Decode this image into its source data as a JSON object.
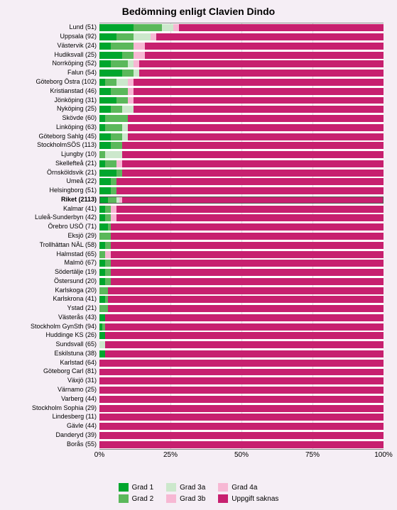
{
  "title": "Bedömning enligt Clavien Dindo",
  "title_fontsize": 14,
  "background": "#f5eef5",
  "plot_bg": "#ffffff",
  "grid_color": "#e0d8e0",
  "xlim": [
    0,
    100
  ],
  "xticks": [
    0,
    25,
    50,
    75,
    100
  ],
  "xtick_labels": [
    "0%",
    "25%",
    "50%",
    "75%",
    "100%"
  ],
  "xtick_fontsize": 10,
  "label_fontsize": 9,
  "legend": {
    "items": [
      {
        "label": "Grad 1",
        "color": "#00a62d"
      },
      {
        "label": "Grad 2",
        "color": "#5bb85b"
      },
      {
        "label": "Grad 3a",
        "color": "#cce8cc"
      },
      {
        "label": "Grad 3b",
        "color": "#f7b8d4"
      },
      {
        "label": "Grad 4a",
        "color": "#f7b8d4"
      },
      {
        "label": "Uppgift saknas",
        "color": "#c7206f"
      }
    ],
    "layout": [
      [
        0,
        1
      ],
      [
        2,
        3
      ],
      [
        4,
        5
      ]
    ],
    "fontsize": 10
  },
  "series_colors": [
    "#00a62d",
    "#5bb85b",
    "#cce8cc",
    "#f7b8d4",
    "#f7b8d4",
    "#c7206f"
  ],
  "rows": [
    {
      "label": "Lund",
      "n": 51,
      "v": [
        12,
        10,
        4,
        2,
        0,
        72
      ]
    },
    {
      "label": "Uppsala",
      "n": 92,
      "v": [
        6,
        6,
        6,
        2,
        0,
        80
      ]
    },
    {
      "label": "Västervik",
      "n": 24,
      "v": [
        4,
        8,
        0,
        4,
        0,
        84
      ]
    },
    {
      "label": "Hudiksvall",
      "n": 25,
      "v": [
        8,
        4,
        0,
        4,
        0,
        84
      ]
    },
    {
      "label": "Norrköping",
      "n": 52,
      "v": [
        4,
        6,
        2,
        2,
        0,
        86
      ]
    },
    {
      "label": "Falun",
      "n": 54,
      "v": [
        8,
        4,
        2,
        0,
        0,
        86
      ]
    },
    {
      "label": "Göteborg Östra",
      "n": 102,
      "v": [
        2,
        4,
        4,
        2,
        0,
        88
      ]
    },
    {
      "label": "Kristianstad",
      "n": 46,
      "v": [
        4,
        6,
        0,
        2,
        0,
        88
      ]
    },
    {
      "label": "Jönköping",
      "n": 31,
      "v": [
        6,
        4,
        0,
        2,
        0,
        88
      ]
    },
    {
      "label": "Nyköping",
      "n": 25,
      "v": [
        4,
        4,
        4,
        0,
        0,
        88
      ]
    },
    {
      "label": "Skövde",
      "n": 60,
      "v": [
        2,
        8,
        0,
        0,
        0,
        90
      ]
    },
    {
      "label": "Linköping",
      "n": 63,
      "v": [
        2,
        6,
        2,
        0,
        0,
        90
      ]
    },
    {
      "label": "Göteborg Sahlg",
      "n": 45,
      "v": [
        4,
        4,
        2,
        0,
        0,
        90
      ]
    },
    {
      "label": "StockholmSÖS",
      "n": 113,
      "v": [
        4,
        4,
        0,
        0,
        0,
        92
      ]
    },
    {
      "label": "Ljungby",
      "n": 10,
      "v": [
        0,
        2,
        6,
        0,
        0,
        92
      ]
    },
    {
      "label": "Skellefteå",
      "n": 21,
      "v": [
        2,
        4,
        0,
        2,
        0,
        92
      ]
    },
    {
      "label": "Örnsköldsvik",
      "n": 21,
      "v": [
        6,
        2,
        0,
        0,
        0,
        92
      ]
    },
    {
      "label": "Umeå",
      "n": 22,
      "v": [
        4,
        2,
        0,
        0,
        0,
        94
      ]
    },
    {
      "label": "Helsingborg",
      "n": 51,
      "v": [
        4,
        2,
        0,
        0,
        0,
        94
      ]
    },
    {
      "label": "Riket",
      "n": 2113,
      "v": [
        3,
        3,
        1,
        1,
        0,
        92
      ],
      "highlight": true
    },
    {
      "label": "Kalmar",
      "n": 41,
      "v": [
        2,
        2,
        0,
        2,
        0,
        94
      ]
    },
    {
      "label": "Luleå-Sunderbyn",
      "n": 42,
      "v": [
        2,
        2,
        0,
        2,
        0,
        94
      ]
    },
    {
      "label": "Örebro USÖ",
      "n": 71,
      "v": [
        3,
        1,
        0,
        0,
        0,
        96
      ]
    },
    {
      "label": "Eksjö",
      "n": 29,
      "v": [
        0,
        4,
        0,
        0,
        0,
        96
      ]
    },
    {
      "label": "Trollhättan NÄL",
      "n": 58,
      "v": [
        2,
        2,
        0,
        0,
        0,
        96
      ]
    },
    {
      "label": "Halmstad",
      "n": 65,
      "v": [
        0,
        2,
        0,
        2,
        0,
        96
      ]
    },
    {
      "label": "Malmö",
      "n": 67,
      "v": [
        2,
        2,
        0,
        0,
        0,
        96
      ]
    },
    {
      "label": "Södertälje",
      "n": 19,
      "v": [
        2,
        2,
        0,
        0,
        0,
        96
      ]
    },
    {
      "label": "Östersund",
      "n": 20,
      "v": [
        2,
        2,
        0,
        0,
        0,
        96
      ]
    },
    {
      "label": "Karlskoga",
      "n": 20,
      "v": [
        0,
        3,
        0,
        0,
        0,
        97
      ]
    },
    {
      "label": "Karlskrona",
      "n": 41,
      "v": [
        2,
        1,
        0,
        0,
        0,
        97
      ]
    },
    {
      "label": "Ystad",
      "n": 21,
      "v": [
        0,
        3,
        0,
        0,
        0,
        97
      ]
    },
    {
      "label": "Västerås",
      "n": 43,
      "v": [
        2,
        0,
        0,
        0,
        0,
        98
      ]
    },
    {
      "label": "Stockholm GynSth",
      "n": 94,
      "v": [
        1,
        1,
        0,
        0,
        0,
        98
      ]
    },
    {
      "label": "Huddinge KS",
      "n": 26,
      "v": [
        2,
        0,
        0,
        0,
        0,
        98
      ]
    },
    {
      "label": "Sundsvall",
      "n": 65,
      "v": [
        0,
        0,
        2,
        0,
        0,
        98
      ]
    },
    {
      "label": "Eskilstuna",
      "n": 38,
      "v": [
        2,
        0,
        0,
        0,
        0,
        98
      ]
    },
    {
      "label": "Karlstad",
      "n": 64,
      "v": [
        0,
        0,
        0,
        0,
        0,
        100
      ]
    },
    {
      "label": "Göteborg Carl",
      "n": 81,
      "v": [
        0,
        0,
        0,
        0,
        0,
        100
      ]
    },
    {
      "label": "Växjö",
      "n": 31,
      "v": [
        0,
        0,
        0,
        0,
        0,
        100
      ]
    },
    {
      "label": "Värnamo",
      "n": 25,
      "v": [
        0,
        0,
        0,
        0,
        0,
        100
      ]
    },
    {
      "label": "Varberg",
      "n": 44,
      "v": [
        0,
        0,
        0,
        0,
        0,
        100
      ]
    },
    {
      "label": "Stockholm Sophia",
      "n": 29,
      "v": [
        0,
        0,
        0,
        0,
        0,
        100
      ]
    },
    {
      "label": "Lindesberg",
      "n": 11,
      "v": [
        0,
        0,
        0,
        0,
        0,
        100
      ]
    },
    {
      "label": "Gävle",
      "n": 44,
      "v": [
        0,
        0,
        0,
        0,
        0,
        100
      ]
    },
    {
      "label": "Danderyd",
      "n": 39,
      "v": [
        0,
        0,
        0,
        0,
        0,
        100
      ]
    },
    {
      "label": "Borås",
      "n": 55,
      "v": [
        0,
        0,
        0,
        0,
        0,
        100
      ]
    }
  ]
}
